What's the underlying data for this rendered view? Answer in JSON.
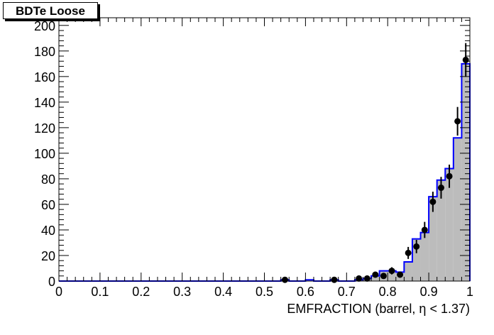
{
  "chart_data": {
    "type": "histogram",
    "title": "BDTe Loose",
    "xlabel": "EMFRACTION (barrel,  η < 1.37)",
    "ylabel": "",
    "xlim": [
      0,
      1
    ],
    "ylim": [
      0,
      206
    ],
    "x_ticks": [
      "0",
      "0.1",
      "0.2",
      "0.3",
      "0.4",
      "0.5",
      "0.6",
      "0.7",
      "0.8",
      "0.9",
      "1"
    ],
    "y_ticks": [
      "0",
      "20",
      "40",
      "60",
      "80",
      "100",
      "120",
      "140",
      "160",
      "180",
      "200"
    ],
    "bin_width": 0.02,
    "series": [
      {
        "kind": "mc-histogram",
        "fill_color": "#bcbcbc",
        "line_color": "#0000ff",
        "bins": [
          {
            "x": 0.54,
            "y": 1
          },
          {
            "x": 0.6,
            "y": 1
          },
          {
            "x": 0.66,
            "y": 1
          },
          {
            "x": 0.72,
            "y": 1
          },
          {
            "x": 0.74,
            "y": 2
          },
          {
            "x": 0.76,
            "y": 4
          },
          {
            "x": 0.78,
            "y": 8
          },
          {
            "x": 0.8,
            "y": 8
          },
          {
            "x": 0.82,
            "y": 7
          },
          {
            "x": 0.84,
            "y": 15
          },
          {
            "x": 0.86,
            "y": 33
          },
          {
            "x": 0.88,
            "y": 38
          },
          {
            "x": 0.9,
            "y": 66
          },
          {
            "x": 0.92,
            "y": 79
          },
          {
            "x": 0.94,
            "y": 88
          },
          {
            "x": 0.96,
            "y": 112
          },
          {
            "x": 0.98,
            "y": 170
          }
        ]
      },
      {
        "kind": "data-points",
        "marker_color": "#000000",
        "points": [
          {
            "x": 0.55,
            "y": 1,
            "err": 1
          },
          {
            "x": 0.67,
            "y": 1,
            "err": 1
          },
          {
            "x": 0.73,
            "y": 2,
            "err": 1.4
          },
          {
            "x": 0.75,
            "y": 2,
            "err": 1.4
          },
          {
            "x": 0.77,
            "y": 5,
            "err": 2.2
          },
          {
            "x": 0.79,
            "y": 4,
            "err": 2
          },
          {
            "x": 0.81,
            "y": 8,
            "err": 2.8
          },
          {
            "x": 0.83,
            "y": 5,
            "err": 2.2
          },
          {
            "x": 0.85,
            "y": 22,
            "err": 4.7
          },
          {
            "x": 0.87,
            "y": 27,
            "err": 5.2
          },
          {
            "x": 0.89,
            "y": 40,
            "err": 6.3
          },
          {
            "x": 0.91,
            "y": 62,
            "err": 7.9
          },
          {
            "x": 0.93,
            "y": 73,
            "err": 8.5
          },
          {
            "x": 0.95,
            "y": 82,
            "err": 9.1
          },
          {
            "x": 0.97,
            "y": 125,
            "err": 11.2
          },
          {
            "x": 0.99,
            "y": 173,
            "err": 13.2
          }
        ]
      }
    ]
  }
}
